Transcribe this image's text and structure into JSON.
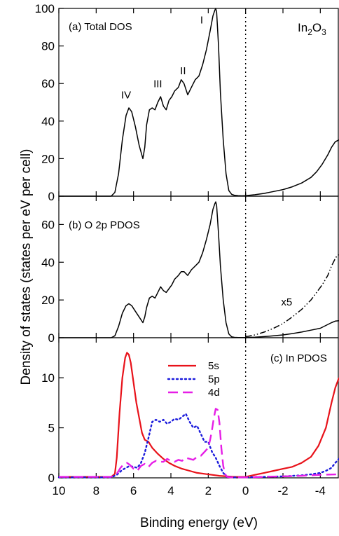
{
  "figure": {
    "ylabel": "Density of states (states per eV per cell)",
    "xlabel": "Binding energy (eV)",
    "compound_main": "In",
    "compound_sub1": "2",
    "compound_mid": "O",
    "compound_sub2": "3"
  },
  "colors": {
    "axis": "#000000",
    "s5": "#e8121a",
    "p5": "#1a1adc",
    "d4": "#e61ee6"
  },
  "chart_data": [
    {
      "type": "line",
      "title": "(a) Total DOS",
      "xlim": [
        10,
        -5
      ],
      "ylim": [
        0,
        100
      ],
      "xticks": [
        10,
        8,
        6,
        4,
        2,
        0,
        -2,
        -4
      ],
      "xtick_labels": [
        "10",
        "8",
        "6",
        "4",
        "2",
        "0",
        "-2",
        "-4"
      ],
      "yticks": [
        0,
        20,
        40,
        60,
        80,
        100
      ],
      "ytick_labels": [
        "0",
        "20",
        "40",
        "60",
        "80",
        "100"
      ],
      "annotations": [
        {
          "text": "IV",
          "x": 6.4,
          "y": 52
        },
        {
          "text": "III",
          "x": 4.7,
          "y": 58
        },
        {
          "text": "II",
          "x": 3.35,
          "y": 65
        },
        {
          "text": "I",
          "x": 2.35,
          "y": 92
        }
      ],
      "reference_line_x": 0,
      "series": [
        {
          "style": "solid",
          "color": "#000000",
          "x": [
            10,
            7.2,
            7.0,
            6.8,
            6.6,
            6.4,
            6.25,
            6.1,
            5.9,
            5.7,
            5.5,
            5.4,
            5.3,
            5.15,
            5.0,
            4.85,
            4.7,
            4.55,
            4.4,
            4.25,
            4.1,
            3.95,
            3.8,
            3.6,
            3.45,
            3.3,
            3.1,
            2.9,
            2.7,
            2.5,
            2.3,
            2.1,
            1.9,
            1.75,
            1.65,
            1.6,
            1.55,
            1.45,
            1.35,
            1.2,
            1.05,
            0.9,
            0.75,
            0.6,
            0.4,
            0.2,
            0,
            -0.5,
            -1,
            -1.5,
            -2,
            -2.5,
            -3,
            -3.5,
            -3.8,
            -4.1,
            -4.4,
            -4.6,
            -4.8,
            -5
          ],
          "y": [
            0,
            0,
            2,
            12,
            30,
            43,
            47,
            45,
            37,
            27,
            20,
            26,
            38,
            46,
            47,
            46,
            50,
            53,
            48,
            46,
            51,
            53,
            56,
            58,
            62,
            60,
            54,
            58,
            62,
            64,
            70,
            78,
            88,
            96,
            99,
            100,
            98,
            80,
            55,
            30,
            12,
            3,
            1,
            0.5,
            0.3,
            0.2,
            0.3,
            0.8,
            1.5,
            2.5,
            3.5,
            5,
            7,
            10,
            13,
            17,
            22,
            26,
            29,
            30
          ]
        }
      ]
    },
    {
      "type": "line",
      "title": "(b) O 2p PDOS",
      "xlim": [
        10,
        -5
      ],
      "ylim": [
        0,
        75
      ],
      "yticks": [
        0,
        20,
        40,
        60
      ],
      "ytick_labels": [
        "0",
        "20",
        "40",
        "60"
      ],
      "annotations": [
        {
          "text": "x5",
          "x": -2.2,
          "y": 17
        }
      ],
      "reference_line_x": 0,
      "series": [
        {
          "style": "solid",
          "color": "#000000",
          "x": [
            10,
            7.2,
            7.0,
            6.8,
            6.6,
            6.4,
            6.25,
            6.1,
            5.9,
            5.7,
            5.5,
            5.4,
            5.3,
            5.15,
            5.0,
            4.85,
            4.7,
            4.55,
            4.4,
            4.25,
            4.1,
            3.95,
            3.8,
            3.6,
            3.45,
            3.3,
            3.1,
            2.9,
            2.7,
            2.5,
            2.3,
            2.1,
            1.9,
            1.75,
            1.65,
            1.6,
            1.55,
            1.45,
            1.35,
            1.2,
            1.05,
            0.9,
            0.75,
            0.6,
            0.4,
            0.2,
            0,
            -0.5,
            -1,
            -1.5,
            -2,
            -2.5,
            -3,
            -3.5,
            -4,
            -4.3,
            -4.6,
            -4.8,
            -5
          ],
          "y": [
            0,
            0,
            1,
            6,
            13,
            17,
            18,
            17,
            14,
            11,
            8,
            11,
            16,
            21,
            22,
            21,
            24,
            27,
            25,
            24,
            26,
            28,
            31,
            33,
            35,
            35,
            33,
            36,
            38,
            40,
            45,
            52,
            60,
            68,
            71,
            72,
            70,
            55,
            38,
            20,
            8,
            2,
            0.5,
            0.2,
            0.1,
            0.1,
            0.1,
            0.3,
            0.6,
            1,
            1.5,
            2.2,
            3,
            4,
            5,
            6.5,
            8,
            8.8,
            9
          ]
        },
        {
          "style": "dashdotdot",
          "color": "#000000",
          "label": "x5",
          "x": [
            0,
            -0.5,
            -1,
            -1.5,
            -2,
            -2.5,
            -3,
            -3.5,
            -3.8,
            -4.1,
            -4.4,
            -4.6,
            -4.8,
            -4.9,
            -5
          ],
          "y": [
            0.5,
            1.5,
            3,
            5,
            7.5,
            11,
            15,
            20,
            24,
            28,
            33,
            38,
            42,
            43.5,
            44
          ]
        }
      ]
    },
    {
      "type": "line",
      "title": "(c) In PDOS",
      "xlim": [
        10,
        -5
      ],
      "ylim": [
        0,
        14
      ],
      "yticks": [
        0,
        5,
        10
      ],
      "ytick_labels": [
        "0",
        "5",
        "10"
      ],
      "reference_line_x": 0,
      "legend": {
        "placement": "top-center"
      },
      "series": [
        {
          "name": "5s",
          "style": "solid",
          "color": "#e8121a",
          "x": [
            10,
            7.2,
            7.0,
            6.9,
            6.75,
            6.6,
            6.45,
            6.35,
            6.25,
            6.15,
            6.0,
            5.85,
            5.7,
            5.55,
            5.4,
            5.2,
            5.0,
            4.7,
            4.4,
            4.1,
            3.8,
            3.4,
            3.0,
            2.6,
            2.2,
            1.8,
            1.4,
            1.0,
            0.6,
            0.2,
            0,
            -0.5,
            -1,
            -1.5,
            -2,
            -2.5,
            -3,
            -3.5,
            -3.9,
            -4.3,
            -4.6,
            -4.8,
            -5
          ],
          "y": [
            0.1,
            0.1,
            0.4,
            2,
            6.5,
            10,
            12,
            12.5,
            12.3,
            11.5,
            9.5,
            7.5,
            6,
            4.5,
            3.8,
            3.6,
            3.0,
            2.4,
            1.9,
            1.5,
            1.2,
            0.9,
            0.7,
            0.5,
            0.4,
            0.3,
            0.2,
            0.15,
            0.1,
            0.1,
            0.1,
            0.3,
            0.5,
            0.7,
            0.9,
            1.1,
            1.5,
            2.1,
            3.2,
            5,
            7.5,
            9,
            10
          ]
        },
        {
          "name": "5p",
          "style": "dotted",
          "color": "#1a1adc",
          "x": [
            10,
            7.2,
            6.9,
            6.6,
            6.4,
            6.2,
            6.0,
            5.8,
            5.6,
            5.4,
            5.2,
            5.0,
            4.8,
            4.6,
            4.4,
            4.2,
            4.0,
            3.8,
            3.6,
            3.4,
            3.2,
            3.0,
            2.8,
            2.6,
            2.4,
            2.2,
            2.0,
            1.8,
            1.6,
            1.4,
            1.2,
            1.0,
            0.6,
            0,
            -1,
            -2,
            -3,
            -3.5,
            -4,
            -4.3,
            -4.6,
            -4.8,
            -5
          ],
          "y": [
            0.05,
            0.05,
            0.3,
            0.8,
            1.0,
            1.2,
            1.1,
            1.0,
            1.5,
            2.5,
            4.0,
            5.6,
            5.8,
            5.6,
            5.8,
            5.4,
            5.6,
            5.9,
            5.8,
            6.1,
            6.4,
            5.6,
            5.0,
            5.2,
            4.4,
            3.6,
            3.6,
            2.6,
            2.0,
            1.2,
            0.5,
            0.1,
            0.05,
            0.05,
            0.1,
            0.15,
            0.25,
            0.35,
            0.5,
            0.7,
            1.0,
            1.5,
            1.9
          ]
        },
        {
          "name": "4d",
          "style": "dashed",
          "color": "#e61ee6",
          "x": [
            10,
            7.2,
            6.9,
            6.7,
            6.5,
            6.35,
            6.2,
            6.0,
            5.8,
            5.6,
            5.4,
            5.2,
            5.0,
            4.8,
            4.6,
            4.4,
            4.2,
            4.0,
            3.8,
            3.6,
            3.4,
            3.2,
            3.0,
            2.8,
            2.6,
            2.4,
            2.2,
            2.0,
            1.9,
            1.8,
            1.7,
            1.6,
            1.5,
            1.4,
            1.3,
            1.2,
            1.1,
            1.0,
            0.8,
            0.5,
            0,
            -1,
            -2,
            -3,
            -4,
            -5
          ],
          "y": [
            0.1,
            0.1,
            0.4,
            1.0,
            1.4,
            1.5,
            1.3,
            0.9,
            0.7,
            1.2,
            1.4,
            1.1,
            1.5,
            1.7,
            1.6,
            1.6,
            1.9,
            1.7,
            1.6,
            1.8,
            1.7,
            2.0,
            1.9,
            1.8,
            2.1,
            2.2,
            2.6,
            3.0,
            3.8,
            4.8,
            6.0,
            6.9,
            6.8,
            5.5,
            3.0,
            1.2,
            0.4,
            0.1,
            0.05,
            0.05,
            0.05,
            0.1,
            0.15,
            0.2,
            0.3,
            0.35
          ]
        }
      ]
    }
  ]
}
